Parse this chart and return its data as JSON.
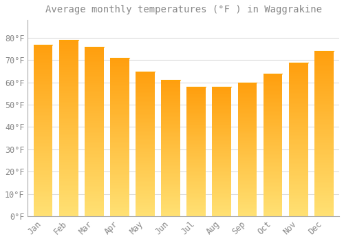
{
  "title": "Average monthly temperatures (°F ) in Waggrakine",
  "months": [
    "Jan",
    "Feb",
    "Mar",
    "Apr",
    "May",
    "Jun",
    "Jul",
    "Aug",
    "Sep",
    "Oct",
    "Nov",
    "Dec"
  ],
  "values": [
    77,
    79,
    76,
    71,
    65,
    61,
    58,
    58,
    60,
    64,
    69,
    74
  ],
  "bar_color_top": "#FFA500",
  "bar_color_bottom": "#FFD060",
  "background_color": "#FFFFFF",
  "grid_color": "#DDDDDD",
  "text_color": "#888888",
  "ylim": [
    0,
    88
  ],
  "yticks": [
    0,
    10,
    20,
    30,
    40,
    50,
    60,
    70,
    80
  ],
  "title_fontsize": 10,
  "tick_fontsize": 8.5,
  "bar_width": 0.75
}
